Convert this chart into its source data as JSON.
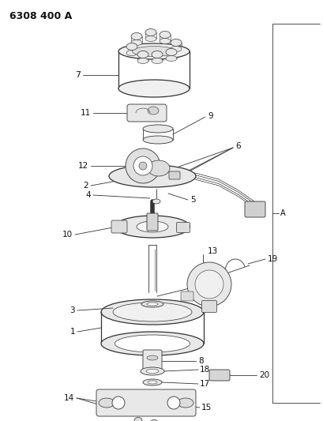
{
  "title": "6308 400 A",
  "bg_color": "#ffffff",
  "line_color": "#333333",
  "label_color": "#111111",
  "fig_width": 4.1,
  "fig_height": 5.33,
  "dpi": 100
}
